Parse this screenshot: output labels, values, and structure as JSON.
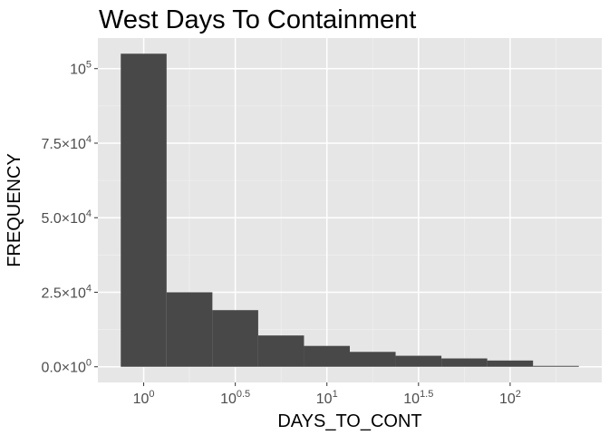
{
  "chart_data": {
    "type": "bar",
    "title": "West Days To Containment",
    "xlabel": "DAYS_TO_CONT",
    "ylabel": "FREQUENCY",
    "x_scale": "log10",
    "bins_log10": [
      {
        "from": -0.125,
        "to": 0.125,
        "count": 105000
      },
      {
        "from": 0.125,
        "to": 0.375,
        "count": 25000
      },
      {
        "from": 0.375,
        "to": 0.625,
        "count": 19000
      },
      {
        "from": 0.625,
        "to": 0.875,
        "count": 10500
      },
      {
        "from": 0.875,
        "to": 1.125,
        "count": 7000
      },
      {
        "from": 1.125,
        "to": 1.375,
        "count": 5000
      },
      {
        "from": 1.375,
        "to": 1.625,
        "count": 3700
      },
      {
        "from": 1.625,
        "to": 1.875,
        "count": 2800
      },
      {
        "from": 1.875,
        "to": 2.125,
        "count": 2100
      },
      {
        "from": 2.125,
        "to": 2.375,
        "count": 300
      }
    ],
    "x_ticks": [
      {
        "base": "10",
        "exp": "0",
        "value": 0
      },
      {
        "base": "10",
        "exp": "0.5",
        "value": 0.5
      },
      {
        "base": "10",
        "exp": "1",
        "value": 1
      },
      {
        "base": "10",
        "exp": "1.5",
        "value": 1.5
      },
      {
        "base": "10",
        "exp": "2",
        "value": 2
      }
    ],
    "y_ticks": [
      {
        "mant": "0.0",
        "exp": "0",
        "value": 0
      },
      {
        "mant": "2.5",
        "exp": "4",
        "value": 25000
      },
      {
        "mant": "5.0",
        "exp": "4",
        "value": 50000
      },
      {
        "mant": "7.5",
        "exp": "4",
        "value": 75000
      },
      {
        "mant": "",
        "exp": "5",
        "value": 100000
      }
    ],
    "xlim_log10": [
      -0.25,
      2.5
    ],
    "ylim": [
      -5250,
      110250
    ],
    "grid": true,
    "legend": "none",
    "colors": {
      "bar_fill": "#484848",
      "panel_background": "#e6e6e6",
      "grid_major": "#ffffff",
      "grid_minor": "#f0f0f0"
    }
  }
}
